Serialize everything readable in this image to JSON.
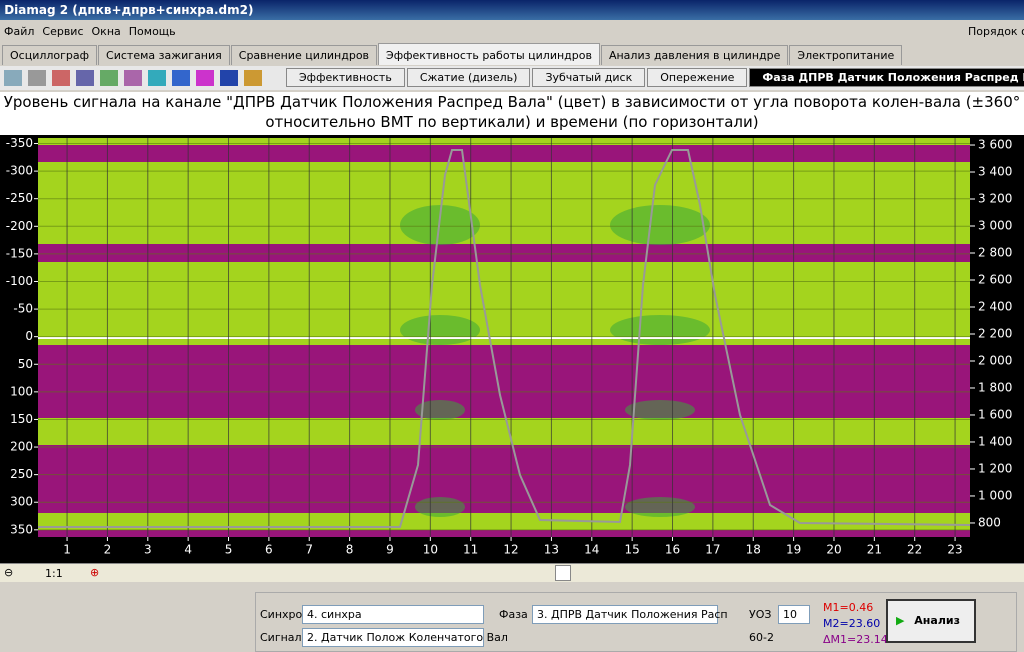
{
  "window": {
    "title": "Diamag 2 (дпкв+дпрв+синхра.dm2)"
  },
  "menu": {
    "items": [
      "Файл",
      "Сервис",
      "Окна",
      "Помощь"
    ],
    "right": "Порядок ок"
  },
  "tabs": {
    "items": [
      "Осциллограф",
      "Система зажигания",
      "Сравнение цилиндров",
      "Эффективность работы цилиндров",
      "Анализ давления в цилиндре",
      "Электропитание"
    ],
    "active": 3
  },
  "subtabs": {
    "items": [
      "Эффективность",
      "Сжатие (дизель)",
      "Зубчатый диск",
      "Опережение",
      "Фаза ДПРВ Датчик Положения Распред Вала"
    ],
    "active": 4
  },
  "chart_data": {
    "type": "heatmap",
    "title": "Уровень сигнала на канале \"ДПРВ Датчик Положения Распред Вала\" (цвет) в зависимости от угла поворота колен-вала (±360° относительно ВМТ по вертикали) и времени (по горизонтали)",
    "ylim": [
      -360,
      363
    ],
    "yticks": [
      -350,
      -300,
      -250,
      -200,
      -150,
      -100,
      -50,
      0,
      50,
      100,
      150,
      200,
      250,
      300,
      350
    ],
    "y2lim": [
      696,
      3652
    ],
    "y2ticks": [
      {
        "value": 3600,
        "label": "3 600"
      },
      {
        "value": 3400,
        "label": "3 400"
      },
      {
        "value": 3200,
        "label": "3 200"
      },
      {
        "value": 3000,
        "label": "3 000"
      },
      {
        "value": 2800,
        "label": "2 800"
      },
      {
        "value": 2600,
        "label": "2 600"
      },
      {
        "value": 2400,
        "label": "2 400"
      },
      {
        "value": 2200,
        "label": "2 200"
      },
      {
        "value": 2000,
        "label": "2 000"
      },
      {
        "value": 1800,
        "label": "1 800"
      },
      {
        "value": 1600,
        "label": "1 600"
      },
      {
        "value": 1400,
        "label": "1 400"
      },
      {
        "value": 1200,
        "label": "1 200"
      },
      {
        "value": 1000,
        "label": "1 000"
      },
      800
    ],
    "xlim": [
      0.28,
      23.37
    ],
    "xticks": [
      1,
      2,
      3,
      4,
      5,
      6,
      7,
      8,
      9,
      10,
      11,
      12,
      13,
      14,
      15,
      16,
      17,
      18,
      19,
      20,
      21,
      22,
      23
    ],
    "grid": true
  },
  "scroll": {
    "zoom": "1:1"
  },
  "controls": {
    "sync_label": "Синхро:",
    "sync_value": "4. синхра",
    "signal_label": "Сигнал:",
    "signal_value": "2. Датчик Полож Коленчатого Вал",
    "phase_label": "Фаза",
    "phase_value": "3. ДПРВ Датчик Положения Расп",
    "uoz_label": "УОЗ",
    "uoz_value": "10",
    "teeth": "60-2",
    "m1": "M1=0.46",
    "m2": "M2=23.60",
    "dm1": "ΔM1=23.14",
    "button": "Анализ"
  }
}
